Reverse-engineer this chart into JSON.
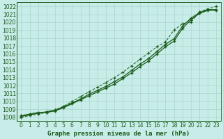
{
  "title": "Graphe pression niveau de la mer (hPa)",
  "bg_color": "#c8ece8",
  "grid_color": "#a8d4ce",
  "line_color": "#1a5c1a",
  "xlim_min": -0.5,
  "xlim_max": 23.5,
  "ylim_min": 1007.5,
  "ylim_max": 1022.5,
  "yticks": [
    1008,
    1009,
    1010,
    1011,
    1012,
    1013,
    1014,
    1015,
    1016,
    1017,
    1018,
    1019,
    1020,
    1021,
    1022
  ],
  "xticks": [
    0,
    1,
    2,
    3,
    4,
    5,
    6,
    7,
    8,
    9,
    10,
    11,
    12,
    13,
    14,
    15,
    16,
    17,
    18,
    19,
    20,
    21,
    22,
    23
  ],
  "line1_x": [
    0,
    1,
    2,
    3,
    4,
    5,
    6,
    7,
    8,
    9,
    10,
    11,
    12,
    13,
    14,
    15,
    16,
    17,
    18,
    19,
    20,
    21,
    22,
    23
  ],
  "line1_y": [
    1008.2,
    1008.4,
    1008.6,
    1008.6,
    1008.8,
    1009.2,
    1009.7,
    1010.2,
    1010.7,
    1011.2,
    1011.7,
    1012.2,
    1012.9,
    1013.6,
    1014.4,
    1015.1,
    1016.0,
    1016.9,
    1017.6,
    1019.2,
    1020.3,
    1021.1,
    1021.5,
    1021.5
  ],
  "line2_x": [
    0,
    1,
    2,
    3,
    4,
    5,
    6,
    7,
    8,
    9,
    10,
    11,
    12,
    13,
    14,
    15,
    16,
    17,
    18,
    19,
    20,
    21,
    22,
    23
  ],
  "line2_y": [
    1008.1,
    1008.3,
    1008.5,
    1008.7,
    1008.9,
    1009.3,
    1009.8,
    1010.3,
    1010.9,
    1011.4,
    1011.9,
    1012.5,
    1013.1,
    1013.9,
    1014.7,
    1015.4,
    1016.3,
    1017.2,
    1017.9,
    1019.5,
    1020.5,
    1021.2,
    1021.6,
    1021.6
  ],
  "line3_x": [
    0,
    1,
    2,
    3,
    4,
    5,
    6,
    7,
    8,
    9,
    10,
    11,
    12,
    13,
    14,
    15,
    16,
    17,
    18,
    19,
    20,
    21,
    22,
    23
  ],
  "line3_y": [
    1008.0,
    1008.2,
    1008.4,
    1008.6,
    1008.9,
    1009.4,
    1010.0,
    1010.6,
    1011.2,
    1011.8,
    1012.4,
    1013.0,
    1013.7,
    1014.5,
    1015.3,
    1016.1,
    1016.9,
    1017.5,
    1019.0,
    1019.8,
    1020.0,
    1021.3,
    1021.7,
    1022.0
  ],
  "tick_fontsize": 5.5,
  "xlabel_fontsize": 6.5
}
